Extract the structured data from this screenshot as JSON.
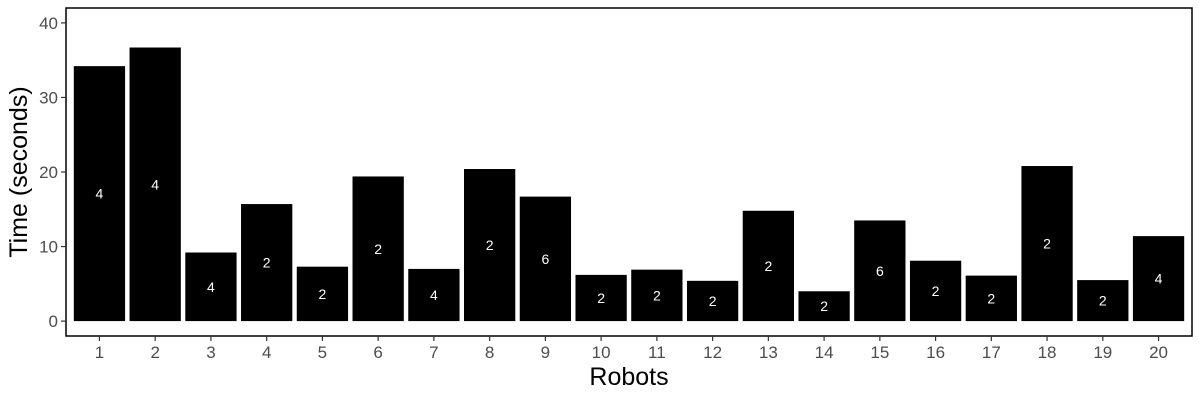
{
  "chart_data": {
    "type": "bar",
    "xlabel": "Robots",
    "ylabel": "Time (seconds)",
    "ylim": [
      -2,
      42
    ],
    "yticks": [
      0,
      10,
      20,
      30,
      40
    ],
    "grid": false,
    "colors": {
      "bar": "#000000",
      "bar_label": "#ffffff",
      "frame": "#000000",
      "tick": "#333333"
    },
    "categories": [
      "1",
      "2",
      "3",
      "4",
      "5",
      "6",
      "7",
      "8",
      "9",
      "10",
      "11",
      "12",
      "13",
      "14",
      "15",
      "16",
      "17",
      "18",
      "19",
      "20"
    ],
    "values": [
      34.2,
      36.7,
      9.2,
      15.7,
      7.3,
      19.4,
      7.0,
      20.4,
      16.7,
      6.2,
      6.9,
      5.4,
      14.8,
      4.0,
      13.5,
      8.1,
      6.1,
      20.8,
      5.5,
      11.4
    ],
    "bar_labels": [
      "4",
      "4",
      "4",
      "2",
      "2",
      "2",
      "4",
      "2",
      "6",
      "2",
      "2",
      "2",
      "2",
      "2",
      "6",
      "2",
      "2",
      "2",
      "2",
      "4"
    ]
  }
}
